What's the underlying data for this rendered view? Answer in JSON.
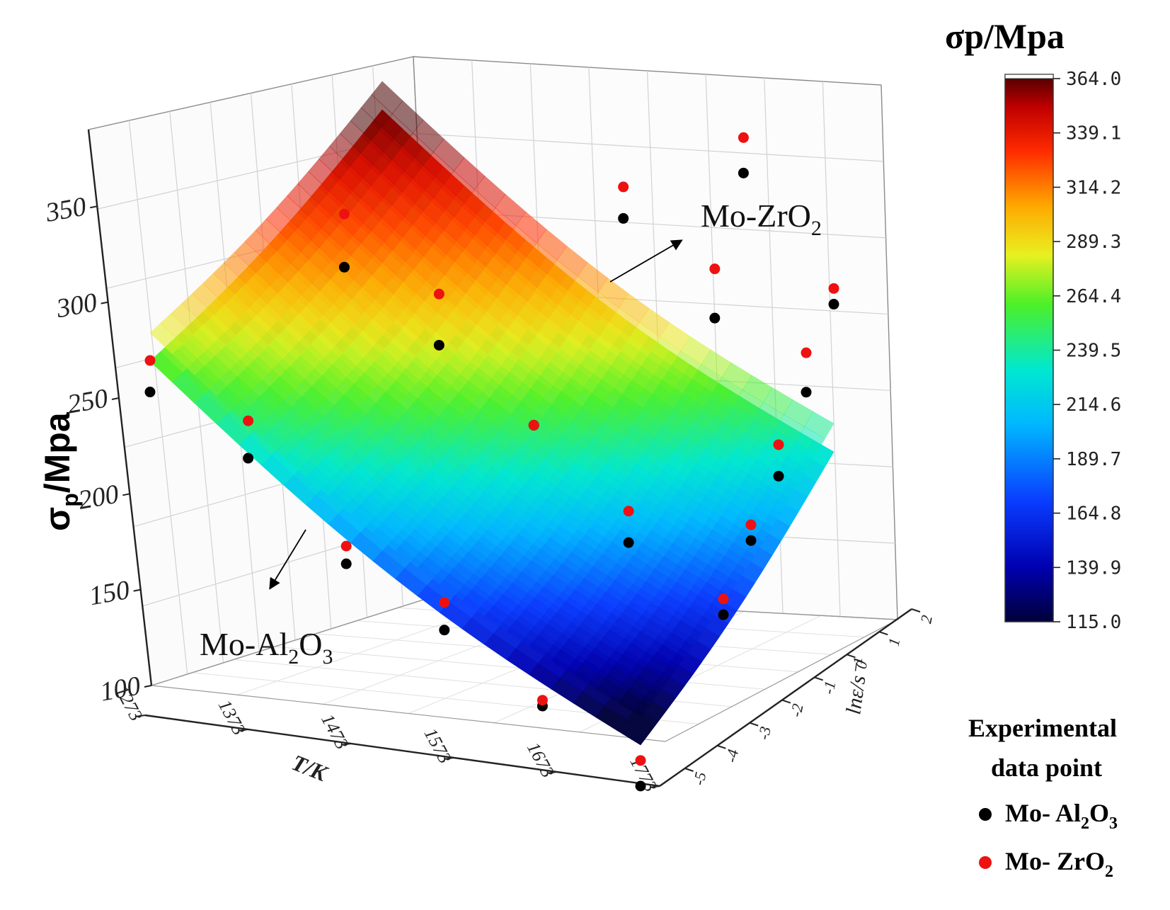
{
  "chart_data": {
    "type": "surface3d",
    "title": "",
    "xlabel": "T/K",
    "ylabel_main": "σ",
    "ylabel_sub": "p",
    "ylabel_rest": "/Mpa",
    "zaxis_label": "lnε/s⁻¹",
    "z_ticks": [
      {
        "value": 100,
        "label": "100"
      },
      {
        "value": 150,
        "label": "150"
      },
      {
        "value": 200,
        "label": "200"
      },
      {
        "value": 250,
        "label": "250"
      },
      {
        "value": 300,
        "label": "300"
      },
      {
        "value": 350,
        "label": "350"
      }
    ],
    "z_range": [
      100,
      390
    ],
    "x_ticks": [
      {
        "value": 1273,
        "label": "1273"
      },
      {
        "value": 1373,
        "label": "1373"
      },
      {
        "value": 1473,
        "label": "1473"
      },
      {
        "value": 1573,
        "label": "1573"
      },
      {
        "value": 1673,
        "label": "1673"
      },
      {
        "value": 1773,
        "label": "1773"
      }
    ],
    "x_range": [
      1273,
      1773
    ],
    "y_ticks": [
      {
        "value": -5,
        "label": "-5"
      },
      {
        "value": -4,
        "label": "-4"
      },
      {
        "value": -3,
        "label": "-3"
      },
      {
        "value": -2,
        "label": "-2"
      },
      {
        "value": -1,
        "label": "-1"
      },
      {
        "value": 0,
        "label": "0"
      },
      {
        "value": 1,
        "label": "1"
      },
      {
        "value": 2,
        "label": "2"
      }
    ],
    "y_range": [
      -5,
      2
    ],
    "colorbar": {
      "title": "σp/Mpa",
      "ticks": [
        "364.0",
        "339.1",
        "314.2",
        "289.3",
        "264.4",
        "239.5",
        "214.6",
        "189.7",
        "164.8",
        "139.9",
        "115.0"
      ]
    },
    "annotations": {
      "upper": {
        "base": "Mo-ZrO",
        "sub": "2"
      },
      "lower_parts": [
        {
          "text": "Mo-Al",
          "sub": false
        },
        {
          "text": "2",
          "sub": true
        },
        {
          "text": "O",
          "sub": false
        },
        {
          "text": "3",
          "sub": true
        }
      ]
    },
    "legend": {
      "title_line1": "Experimental",
      "title_line2": "data point",
      "items": [
        {
          "color": "#000000",
          "parts": [
            {
              "text": "Mo- Al",
              "sub": false
            },
            {
              "text": "2",
              "sub": true
            },
            {
              "text": "O",
              "sub": false
            },
            {
              "text": "3",
              "sub": true
            }
          ]
        },
        {
          "color": "#ee1111",
          "parts": [
            {
              "text": "Mo- ZrO",
              "sub": false
            },
            {
              "text": "2",
              "sub": true
            }
          ]
        }
      ]
    },
    "surfaces": {
      "Mo-ZrO2": {
        "corners": {
          "T1273_lnE2": 378,
          "T1273_lnE-5": 283,
          "T1773_lnE2": 240,
          "T1773_lnE-5": 110
        },
        "curvature": 28
      },
      "Mo-Al2O3": {
        "corners": {
          "T1273_lnE2": 350,
          "T1273_lnE-5": 262,
          "T1773_lnE2": 228,
          "T1773_lnE-5": 100
        },
        "curvature": 28
      }
    },
    "series": [
      {
        "name": "Mo- Al2O3",
        "color": "#000000",
        "points": [
          {
            "T": 1273,
            "lnE": -5,
            "sigma": 257
          },
          {
            "T": 1373,
            "lnE": -5,
            "sigma": 232
          },
          {
            "T": 1473,
            "lnE": -5,
            "sigma": 187
          },
          {
            "T": 1573,
            "lnE": -5,
            "sigma": 162
          },
          {
            "T": 1673,
            "lnE": -5,
            "sigma": 132
          },
          {
            "T": 1773,
            "lnE": -5,
            "sigma": 100
          },
          {
            "T": 1373,
            "lnE": -2,
            "sigma": 309
          },
          {
            "T": 1473,
            "lnE": -2,
            "sigma": 278
          },
          {
            "T": 1573,
            "lnE": -2,
            "sigma": 246
          },
          {
            "T": 1673,
            "lnE": -2,
            "sigma": 195
          },
          {
            "T": 1773,
            "lnE": -2,
            "sigma": 167
          },
          {
            "T": 1573,
            "lnE": 1,
            "sigma": 331
          },
          {
            "T": 1673,
            "lnE": 1,
            "sigma": 289
          },
          {
            "T": 1773,
            "lnE": 1,
            "sigma": 260
          },
          {
            "T": 1673,
            "lnE": 2,
            "sigma": 356
          },
          {
            "T": 1773,
            "lnE": -1,
            "sigma": 198
          },
          {
            "T": 1773,
            "lnE": 0,
            "sigma": 224
          },
          {
            "T": 1773,
            "lnE": 2,
            "sigma": 298
          }
        ]
      },
      {
        "name": "Mo- ZrO2",
        "color": "#ee1111",
        "points": [
          {
            "T": 1273,
            "lnE": -5,
            "sigma": 273
          },
          {
            "T": 1373,
            "lnE": -5,
            "sigma": 251
          },
          {
            "T": 1473,
            "lnE": -5,
            "sigma": 196
          },
          {
            "T": 1573,
            "lnE": -5,
            "sigma": 176
          },
          {
            "T": 1673,
            "lnE": -5,
            "sigma": 135
          },
          {
            "T": 1773,
            "lnE": -5,
            "sigma": 113
          },
          {
            "T": 1373,
            "lnE": -2,
            "sigma": 336
          },
          {
            "T": 1473,
            "lnE": -2,
            "sigma": 304
          },
          {
            "T": 1573,
            "lnE": -2,
            "sigma": 246
          },
          {
            "T": 1673,
            "lnE": -2,
            "sigma": 211
          },
          {
            "T": 1773,
            "lnE": -2,
            "sigma": 175
          },
          {
            "T": 1573,
            "lnE": 1,
            "sigma": 347
          },
          {
            "T": 1673,
            "lnE": 1,
            "sigma": 314
          },
          {
            "T": 1773,
            "lnE": 1,
            "sigma": 280
          },
          {
            "T": 1673,
            "lnE": 2,
            "sigma": 374
          },
          {
            "T": 1773,
            "lnE": -1,
            "sigma": 206
          },
          {
            "T": 1773,
            "lnE": 0,
            "sigma": 240
          },
          {
            "T": 1773,
            "lnE": 2,
            "sigma": 306
          }
        ]
      }
    ]
  }
}
